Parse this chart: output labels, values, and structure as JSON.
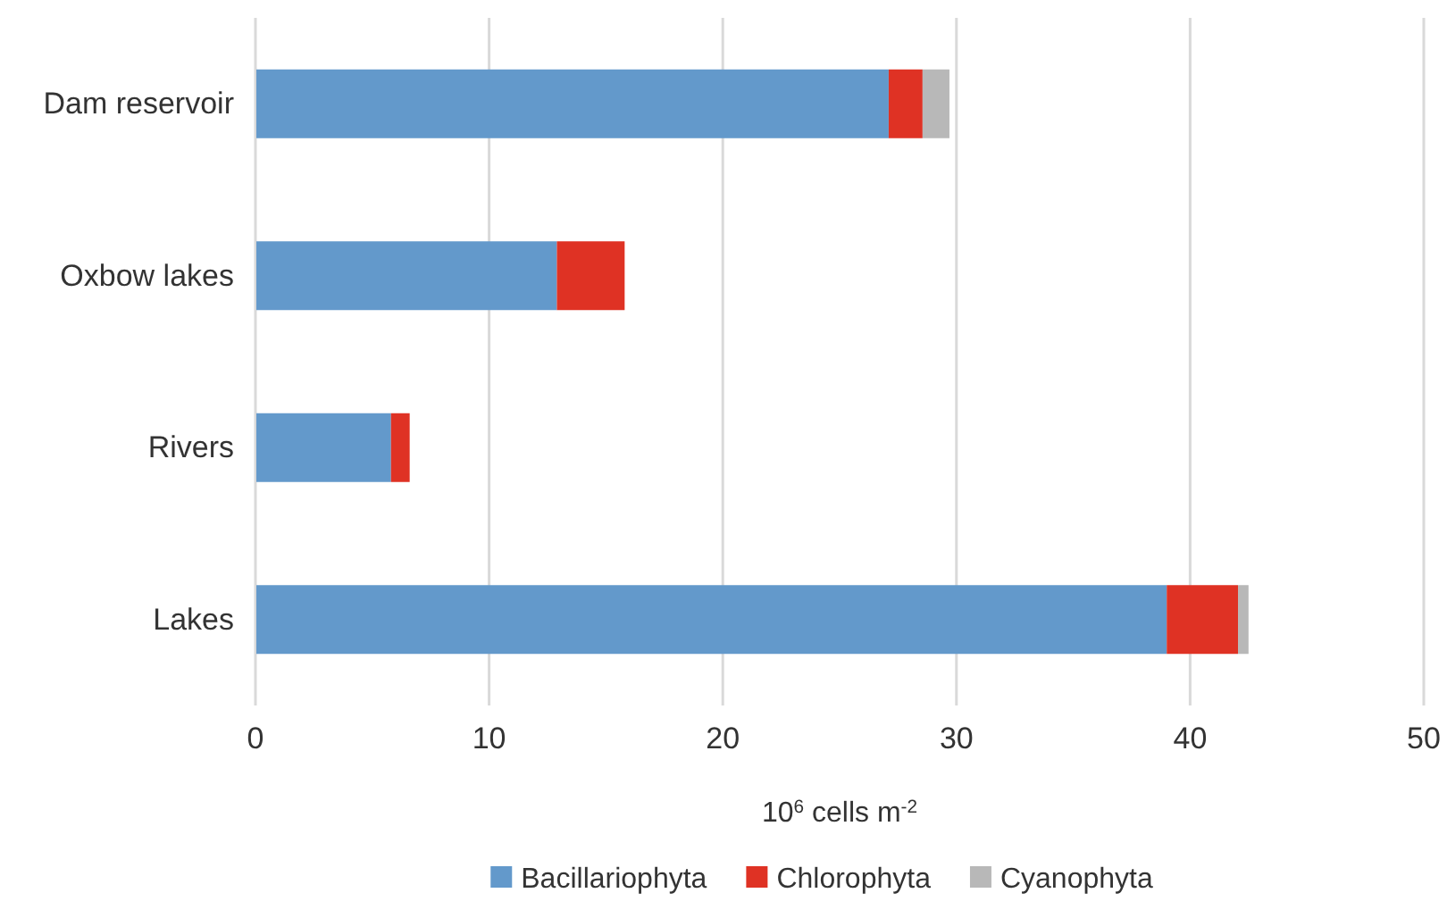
{
  "chart_data": {
    "type": "bar",
    "orientation": "horizontal",
    "stacked": true,
    "categories": [
      "Dam reservoir",
      "Oxbow lakes",
      "Rivers",
      "Lakes"
    ],
    "series": [
      {
        "name": "Bacillariophyta",
        "color": "#6399cb",
        "values": [
          27.1,
          12.9,
          5.8,
          39.0
        ]
      },
      {
        "name": "Chlorophyta",
        "color": "#df3224",
        "values": [
          1.45,
          2.9,
          0.8,
          3.05
        ]
      },
      {
        "name": "Cyanophyta",
        "color": "#b8b8b8",
        "values": [
          1.15,
          0,
          0,
          0.45
        ]
      }
    ],
    "xlabel": "10$^{6}$ cells m$^{-2}$",
    "xlim": [
      0,
      50
    ],
    "xticks": [
      0,
      10,
      20,
      30,
      40,
      50
    ],
    "grid": "x",
    "legend": "bottom"
  }
}
